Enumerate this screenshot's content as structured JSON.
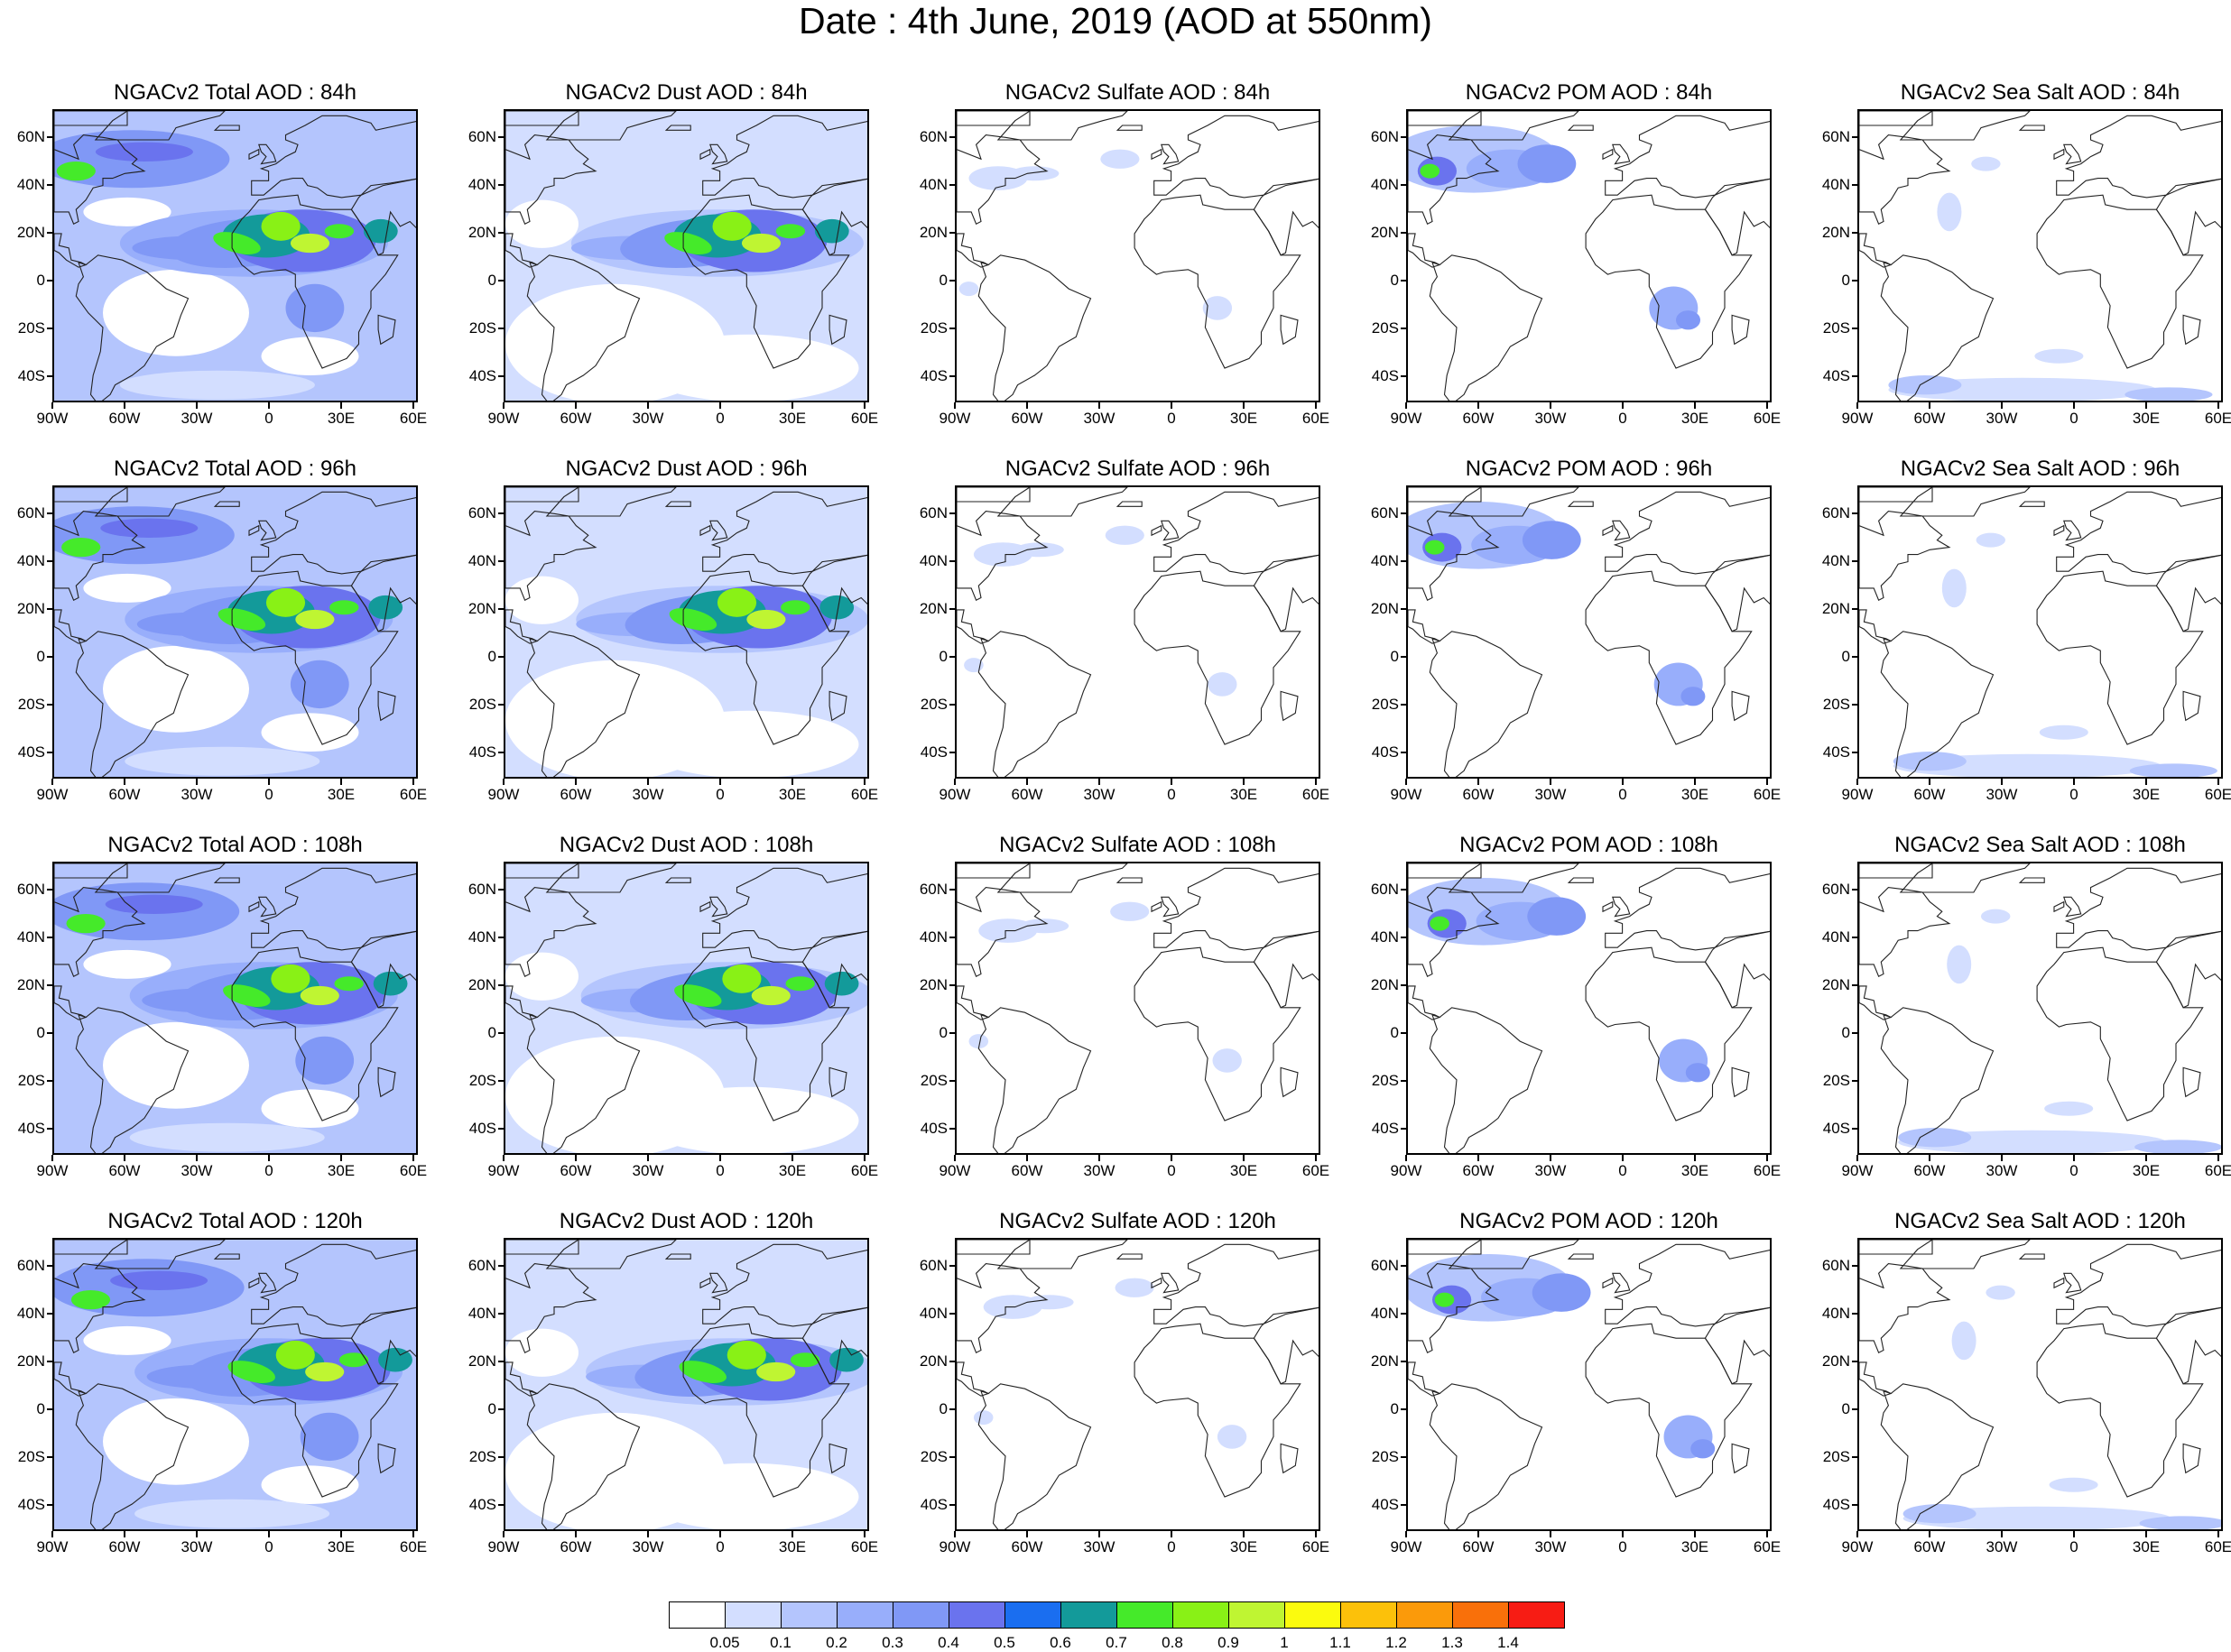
{
  "title": "Date : 4th June, 2019 (AOD at 550nm)",
  "panels": [
    [
      "NGACv2 Total AOD : 84h",
      "NGACv2 Dust AOD : 84h",
      "NGACv2 Sulfate AOD : 84h",
      "NGACv2 POM AOD : 84h",
      "NGACv2 Sea Salt AOD : 84h"
    ],
    [
      "NGACv2 Total AOD : 96h",
      "NGACv2 Dust AOD : 96h",
      "NGACv2 Sulfate AOD : 96h",
      "NGACv2 POM AOD : 96h",
      "NGACv2 Sea Salt AOD : 96h"
    ],
    [
      "NGACv2 Total AOD : 108h",
      "NGACv2 Dust AOD : 108h",
      "NGACv2 Sulfate AOD : 108h",
      "NGACv2 POM AOD : 108h",
      "NGACv2 Sea Salt AOD : 108h"
    ],
    [
      "NGACv2 Total AOD : 120h",
      "NGACv2 Dust AOD : 120h",
      "NGACv2 Sulfate AOD : 120h",
      "NGACv2 POM AOD : 120h",
      "NGACv2 Sea Salt  AOD : 120h"
    ]
  ],
  "lat_labels": [
    "60N",
    "40N",
    "20N",
    "0",
    "20S",
    "40S"
  ],
  "lon_labels": [
    "90W",
    "60W",
    "30W",
    "0",
    "30E",
    "60E"
  ],
  "colorbar": {
    "labels": [
      "0.05",
      "0.1",
      "0.2",
      "0.3",
      "0.4",
      "0.5",
      "0.6",
      "0.7",
      "0.8",
      "0.9",
      "1",
      "1.1",
      "1.2",
      "1.3",
      "1.4"
    ],
    "colors": [
      "#ffffff",
      "#d3deff",
      "#b4c5fd",
      "#98aefb",
      "#8098f6",
      "#6a73ee",
      "#1a6ef0",
      "#139a9a",
      "#45ea2a",
      "#89f116",
      "#bff532",
      "#fbfb0e",
      "#fcc10a",
      "#fb9a0a",
      "#f9700a",
      "#f71c14"
    ]
  }
}
